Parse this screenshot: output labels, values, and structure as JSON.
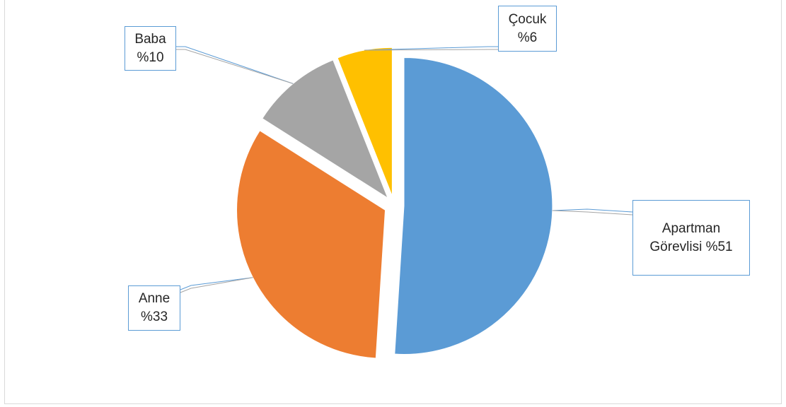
{
  "chart_data": {
    "type": "pie",
    "exploded": true,
    "slices": [
      {
        "name": "Apartman Görevlisi",
        "line1": "Apartman",
        "line2": "Görevlisi %51",
        "value": 51,
        "color": "#5b9bd5"
      },
      {
        "name": "Anne",
        "line1": "Anne",
        "line2": "%33",
        "value": 33,
        "color": "#ed7d31"
      },
      {
        "name": "Baba",
        "line1": "Baba",
        "line2": "%10",
        "value": 10,
        "color": "#a5a5a5"
      },
      {
        "name": "Çocuk",
        "line1": "Çocuk",
        "line2": "%6",
        "value": 6,
        "color": "#ffc000"
      }
    ],
    "label_border_color": "#5b9bd5",
    "leader_line_color": "#a5a5a5",
    "legend": "none",
    "grid": false
  }
}
